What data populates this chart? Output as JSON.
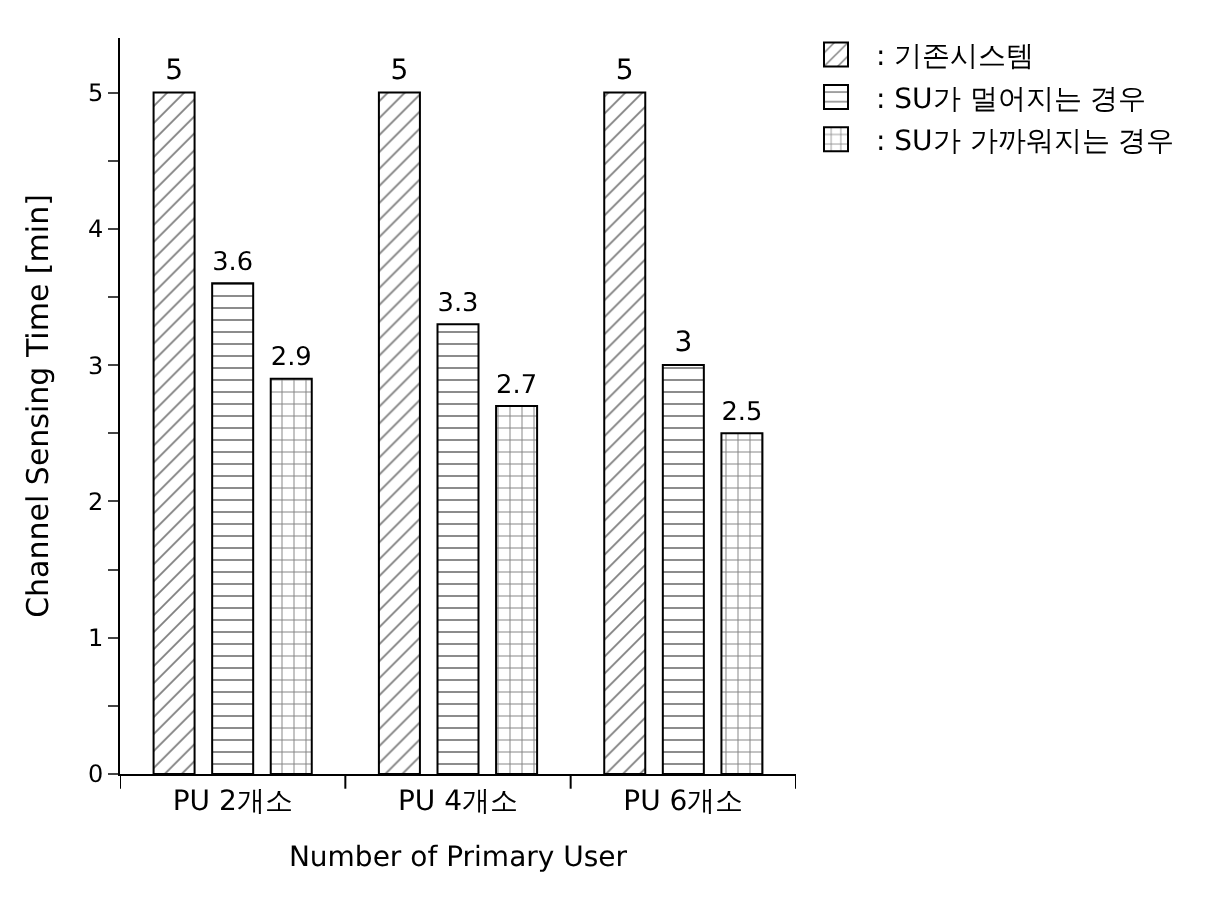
{
  "chart_data": {
    "type": "bar",
    "xlabel": "Number of Primary User",
    "ylabel": "Channel Sensing Time [min]",
    "categories": [
      "PU 2개소",
      "PU 4개소",
      "PU 6개소"
    ],
    "series": [
      {
        "name": ": 기존시스템",
        "color": "#000000",
        "values": [
          5,
          5,
          5
        ]
      },
      {
        "name": ": SU가 멀어지는 경우",
        "color": "#000000",
        "values": [
          3.6,
          3.3,
          3
        ]
      },
      {
        "name": ": SU가 가까워지는 경우",
        "color": "#000000",
        "values": [
          2.9,
          2.7,
          2.5
        ]
      }
    ],
    "ylim": [
      0,
      5.4
    ],
    "yticks": [
      0,
      {
        "value": 0.5,
        "label": null
      },
      1,
      {
        "value": 1.5,
        "label": null
      },
      2,
      {
        "value": 2.5,
        "label": null
      },
      3,
      {
        "value": 3.5,
        "label": null
      },
      4,
      {
        "value": 4.5,
        "label": null
      },
      5
    ],
    "data_labels": true,
    "legend": "top right"
  }
}
